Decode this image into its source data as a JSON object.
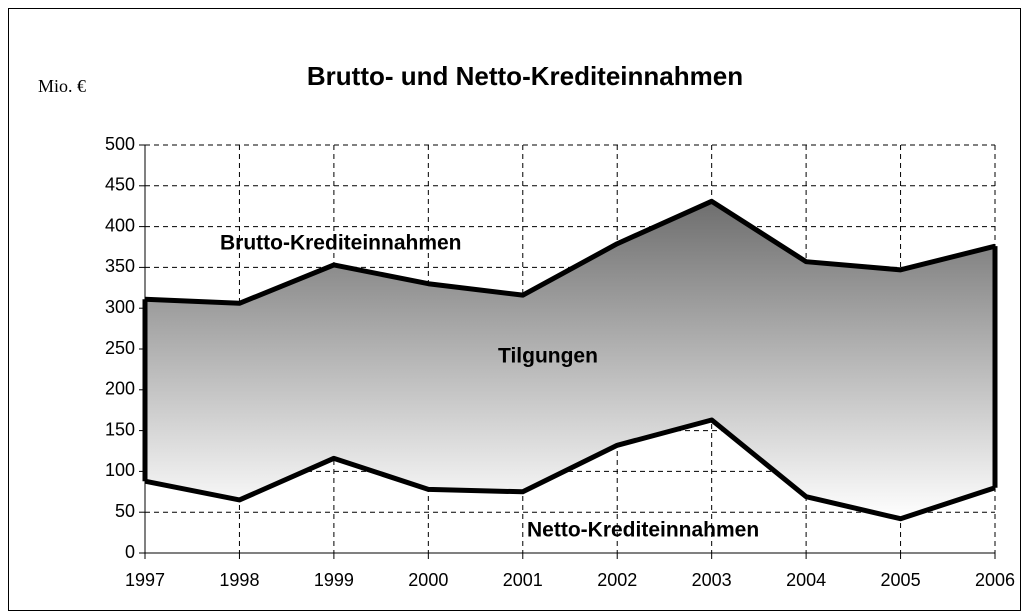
{
  "chart_data": {
    "type": "area_between",
    "title": "Brutto- und Netto-Krediteinnahmen",
    "y_label": "Mio. €",
    "annotations": [
      "Brutto-Krediteinnahmen",
      "Tilgungen",
      "Netto-Krediteinnahmen"
    ],
    "x": [
      1997,
      1998,
      1999,
      2000,
      2001,
      2002,
      2003,
      2004,
      2005,
      2006
    ],
    "xlim": [
      1997,
      2006
    ],
    "xticks": [
      1997,
      1998,
      1999,
      2000,
      2001,
      2002,
      2003,
      2004,
      2005,
      2006
    ],
    "series": [
      {
        "name": "Brutto-Krediteinnahmen",
        "color": "#000000",
        "values": [
          311,
          306,
          353,
          330,
          316,
          379,
          431,
          357,
          347,
          376
        ]
      },
      {
        "name": "Netto-Krediteinnahmen",
        "color": "#000000",
        "values": [
          88,
          65,
          116,
          78,
          75,
          132,
          163,
          69,
          42,
          80
        ]
      }
    ],
    "fill_gradient": [
      "#6e6e6e",
      "#ffffff"
    ],
    "ylim": [
      0,
      500
    ],
    "yticks": [
      0,
      50,
      100,
      150,
      200,
      250,
      300,
      350,
      400,
      450,
      500
    ],
    "grid": true
  }
}
